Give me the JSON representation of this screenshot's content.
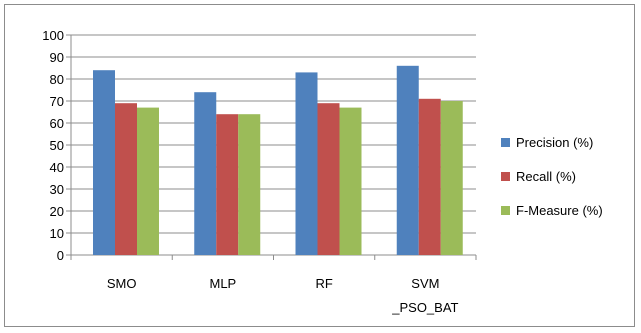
{
  "chart_data": {
    "type": "bar",
    "categories": [
      [
        "SMO"
      ],
      [
        "MLP"
      ],
      [
        "RF"
      ],
      [
        "SVM",
        "_PSO_BAT"
      ]
    ],
    "series": [
      {
        "name": "Precision (%)",
        "values": [
          84,
          74,
          83,
          86
        ],
        "color": "#4f81bd"
      },
      {
        "name": "Recall (%)",
        "values": [
          69,
          64,
          69,
          71
        ],
        "color": "#c0504d"
      },
      {
        "name": "F-Measure (%)",
        "values": [
          67,
          64,
          67,
          70
        ],
        "color": "#9bbb59"
      }
    ],
    "y_ticks": [
      "0",
      "10",
      "20",
      "30",
      "40",
      "50",
      "60",
      "70",
      "80",
      "90",
      "100"
    ],
    "ylim": [
      0,
      100
    ],
    "grid": true,
    "legend_position": "right",
    "title": "",
    "xlabel": "",
    "ylabel": ""
  }
}
